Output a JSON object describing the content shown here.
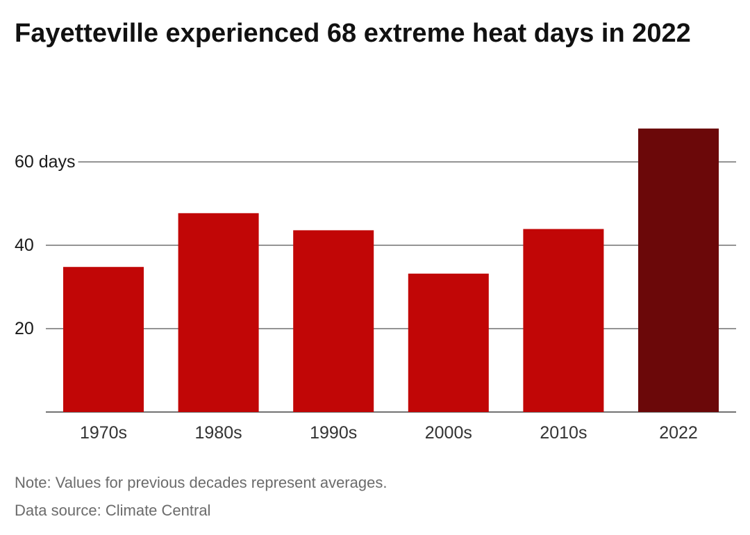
{
  "title": "Fayetteville experienced 68 extreme heat days in 2022",
  "note": "Note: Values for previous decades represent averages.",
  "source": "Data source: Climate Central",
  "colors": {
    "decade_bar": "#c10606",
    "highlight_bar": "#6b0809",
    "gridline": "#555555",
    "axis_line": "#444444"
  },
  "chart_data": {
    "type": "bar",
    "title": "Fayetteville experienced 68 extreme heat days in 2022",
    "categories": [
      "1970s",
      "1980s",
      "1990s",
      "2000s",
      "2010s",
      "2022"
    ],
    "values": [
      34.8,
      47.7,
      43.6,
      33.2,
      43.9,
      68
    ],
    "highlight_index": 5,
    "yticks": [
      {
        "value": 20,
        "label": "20"
      },
      {
        "value": 40,
        "label": "40"
      },
      {
        "value": 60,
        "label": "60 days"
      }
    ],
    "ylim": [
      0,
      70
    ],
    "grid": true,
    "xlabel": "",
    "ylabel": ""
  }
}
